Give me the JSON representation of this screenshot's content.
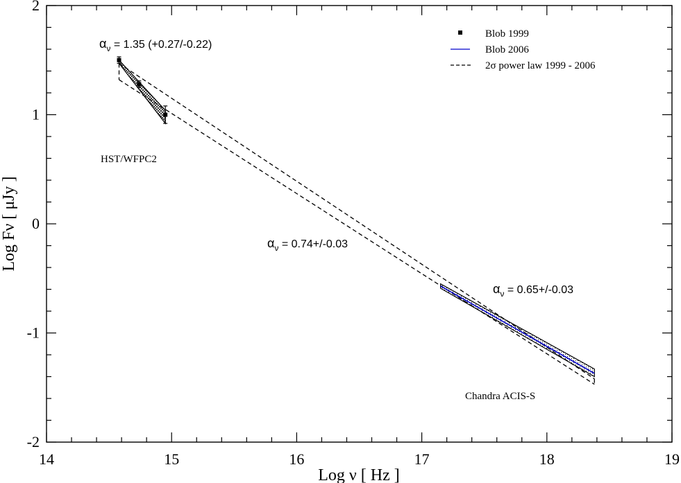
{
  "chart_data": {
    "type": "line",
    "xlabel": "Log ν [ Hz ]",
    "ylabel": "Log Fν [ μJy ]",
    "xlim": [
      14,
      19
    ],
    "ylim": [
      -2,
      2
    ],
    "xticks": [
      "14",
      "15",
      "16",
      "17",
      "18",
      "19"
    ],
    "yticks": [
      "-2",
      "-1",
      "0",
      "1",
      "2"
    ],
    "grid": false,
    "legend_position": "top-right",
    "legend": [
      {
        "label": "Blob 1999",
        "style": "square-marker",
        "color": "#000000"
      },
      {
        "label": "Blob 2006",
        "style": "solid",
        "color": "#0000cc"
      },
      {
        "label": "2σ power law 1999 - 2006",
        "style": "dashed",
        "color": "#000000"
      }
    ],
    "series": [
      {
        "name": "Blob 1999",
        "points": [
          {
            "x": 14.58,
            "y": 1.5,
            "yerr": 0.03
          },
          {
            "x": 14.74,
            "y": 1.28,
            "yerr": 0.03
          },
          {
            "x": 14.95,
            "y": 1.0,
            "yerr": 0.08
          }
        ]
      },
      {
        "name": "Blob 2006",
        "x": [
          17.15,
          18.38
        ],
        "y": [
          -0.57,
          -1.37
        ]
      },
      {
        "name": "2σ power law 1999 - 2006",
        "upper": {
          "x": [
            14.58,
            18.38
          ],
          "y": [
            1.47,
            -1.42
          ]
        },
        "lower": {
          "x": [
            14.58,
            18.38
          ],
          "y": [
            1.32,
            -1.47
          ]
        }
      }
    ],
    "bands": [
      {
        "x": [
          14.58,
          14.95
        ],
        "upper": [
          1.5,
          1.04
        ],
        "lower": [
          1.47,
          0.92
        ]
      },
      {
        "x": [
          17.15,
          18.38
        ],
        "upper": [
          -0.55,
          -1.33
        ],
        "lower": [
          -0.59,
          -1.4
        ]
      }
    ],
    "annotations": {
      "alpha_opt": {
        "symbol": "α",
        "sub": "ν",
        "text": " = 1.35 (+0.27/-0.22)"
      },
      "alpha_pl": {
        "symbol": "α",
        "sub": "ν",
        "text": " = 0.74+/-0.03"
      },
      "alpha_x": {
        "symbol": "α",
        "sub": "ν",
        "text": " = 0.65+/-0.03"
      },
      "hst": "HST/WFPC2",
      "chandra": "Chandra ACIS-S"
    }
  }
}
